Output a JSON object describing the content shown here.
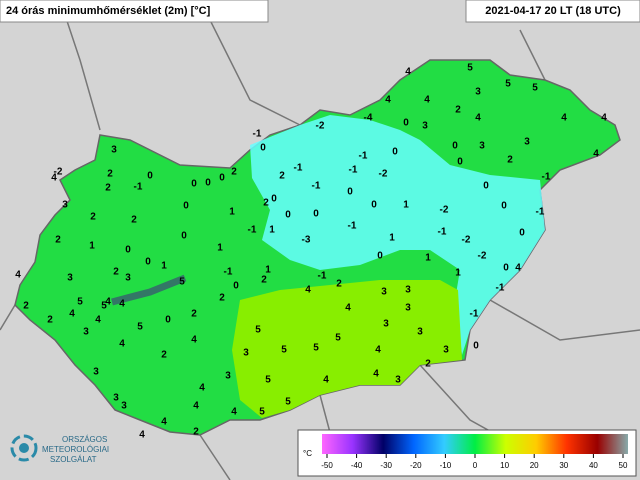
{
  "header": {
    "title": "24 órás minimumhőmérséklet (2m) [°C]",
    "timestamp": "2021-04-17 20 LT (18 UTC)"
  },
  "logo": {
    "lines": [
      "ORSZÁGOS",
      "METEOROLÓGIAI",
      "SZOLGÁLAT"
    ]
  },
  "colorbar": {
    "unit": "°C",
    "ticks": [
      -50,
      -40,
      -30,
      -20,
      -10,
      0,
      10,
      20,
      30,
      40,
      50
    ],
    "colors": [
      "#ff66ff",
      "#9933ff",
      "#000066",
      "#0066ff",
      "#33ccff",
      "#00ee44",
      "#ccff00",
      "#ffcc00",
      "#ff3300",
      "#990000",
      "#88aaaa"
    ]
  },
  "stations": [
    4,
    5,
    5,
    5,
    4,
    4,
    3,
    2,
    0,
    3,
    4,
    4,
    4,
    -2,
    -4,
    -1,
    0,
    0,
    3,
    3,
    0,
    2,
    4,
    -1,
    0,
    -1,
    -2,
    -1,
    3,
    -2,
    4,
    2,
    0,
    -1,
    0,
    0,
    0,
    2,
    -1,
    -1,
    2,
    0,
    0,
    3,
    2,
    2,
    2,
    0,
    1,
    2,
    0,
    0,
    0,
    1,
    0,
    -2,
    0,
    -1,
    2,
    1,
    0,
    0,
    -1,
    1,
    -3,
    -1,
    1,
    -1,
    -2,
    0,
    1,
    0,
    2,
    1,
    -1,
    1,
    -2,
    0,
    1,
    4,
    3,
    3,
    5,
    0,
    2,
    -1,
    2,
    1,
    0,
    4,
    -1,
    2,
    4,
    4,
    5,
    5,
    2,
    4,
    3,
    3,
    3,
    4,
    2,
    4,
    0,
    2,
    4,
    3,
    -1,
    3,
    3,
    5,
    5,
    4,
    4,
    5,
    5,
    5,
    4,
    3,
    0,
    3,
    2,
    2,
    3,
    3,
    4,
    5,
    4,
    3,
    3,
    3,
    4,
    4,
    4,
    5,
    5,
    4,
    2,
    4
  ]
}
